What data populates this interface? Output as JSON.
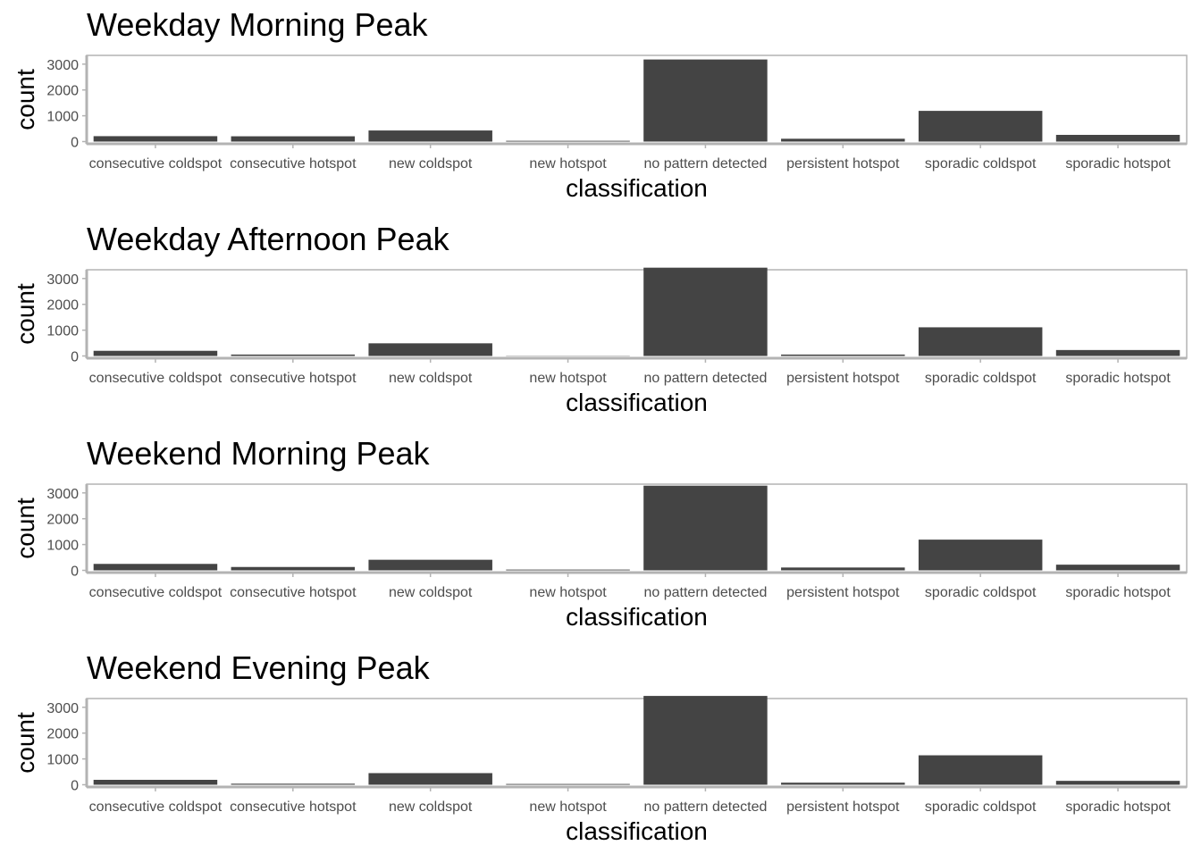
{
  "colors": {
    "bar": "#444444",
    "frame": "#b3b3b3",
    "tick_text": "#4d4d4d",
    "background": "#ffffff"
  },
  "chart_data": [
    {
      "type": "bar",
      "title": "Weekday Morning Peak",
      "xlabel": "classification",
      "ylabel": "count",
      "categories": [
        "consecutive coldspot",
        "consecutive hotspot",
        "new coldspot",
        "new hotspot",
        "no pattern detected",
        "persistent hotspot",
        "sporadic coldspot",
        "sporadic hotspot"
      ],
      "values": [
        210,
        205,
        430,
        30,
        3180,
        110,
        1190,
        260
      ],
      "yticks": [
        0,
        1000,
        2000,
        3000
      ],
      "ylim": [
        0,
        3300
      ],
      "grid": false
    },
    {
      "type": "bar",
      "title": "Weekday Afternoon Peak",
      "xlabel": "classification",
      "ylabel": "count",
      "categories": [
        "consecutive coldspot",
        "consecutive hotspot",
        "new coldspot",
        "new hotspot",
        "no pattern detected",
        "persistent hotspot",
        "sporadic coldspot",
        "sporadic hotspot"
      ],
      "values": [
        200,
        55,
        490,
        10,
        3420,
        55,
        1110,
        230
      ],
      "yticks": [
        0,
        1000,
        2000,
        3000
      ],
      "ylim": [
        0,
        3560
      ],
      "grid": false
    },
    {
      "type": "bar",
      "title": "Weekend Morning Peak",
      "xlabel": "classification",
      "ylabel": "count",
      "categories": [
        "consecutive coldspot",
        "consecutive hotspot",
        "new coldspot",
        "new hotspot",
        "no pattern detected",
        "persistent hotspot",
        "sporadic coldspot",
        "sporadic hotspot"
      ],
      "values": [
        250,
        130,
        410,
        30,
        3280,
        110,
        1190,
        220
      ],
      "yticks": [
        0,
        1000,
        2000,
        3000
      ],
      "ylim": [
        0,
        3410
      ],
      "grid": false
    },
    {
      "type": "bar",
      "title": "Weekend Evening Peak",
      "xlabel": "classification",
      "ylabel": "count",
      "categories": [
        "consecutive coldspot",
        "consecutive hotspot",
        "new coldspot",
        "new hotspot",
        "no pattern detected",
        "persistent hotspot",
        "sporadic coldspot",
        "sporadic hotspot"
      ],
      "values": [
        190,
        40,
        450,
        30,
        3440,
        80,
        1140,
        150
      ],
      "yticks": [
        0,
        1000,
        2000,
        3000
      ],
      "ylim": [
        0,
        3580
      ],
      "grid": false
    }
  ]
}
